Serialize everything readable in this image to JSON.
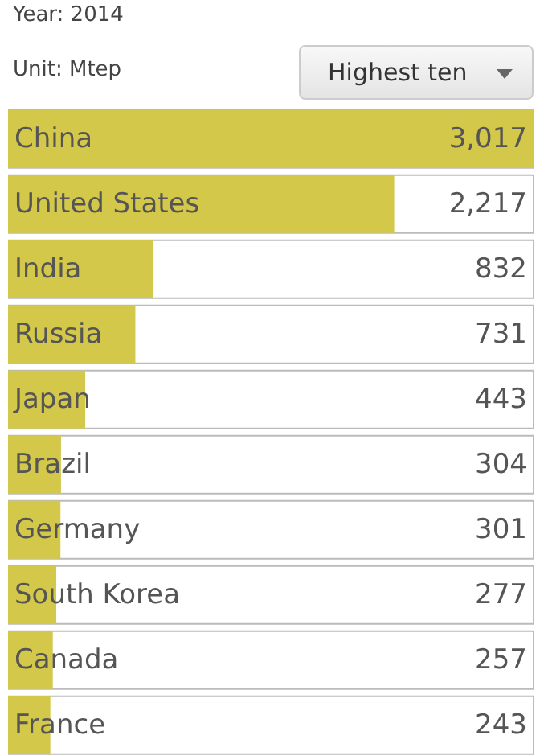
{
  "chart_data": {
    "type": "bar",
    "orientation": "horizontal",
    "title": "Year: 2014",
    "subtitle": "Unit: Mtep",
    "annotations": [
      "Highest ten"
    ],
    "categories": [
      "China",
      "United States",
      "India",
      "Russia",
      "Japan",
      "Brazil",
      "Germany",
      "South Korea",
      "Canada",
      "France"
    ],
    "values": [
      3017,
      2217,
      832,
      731,
      443,
      304,
      301,
      277,
      257,
      243
    ],
    "value_labels": [
      "3,017",
      "2,217",
      "832",
      "731",
      "443",
      "304",
      "301",
      "277",
      "257",
      "243"
    ],
    "color": "#d4c84a",
    "tick_labels": false
  }
}
